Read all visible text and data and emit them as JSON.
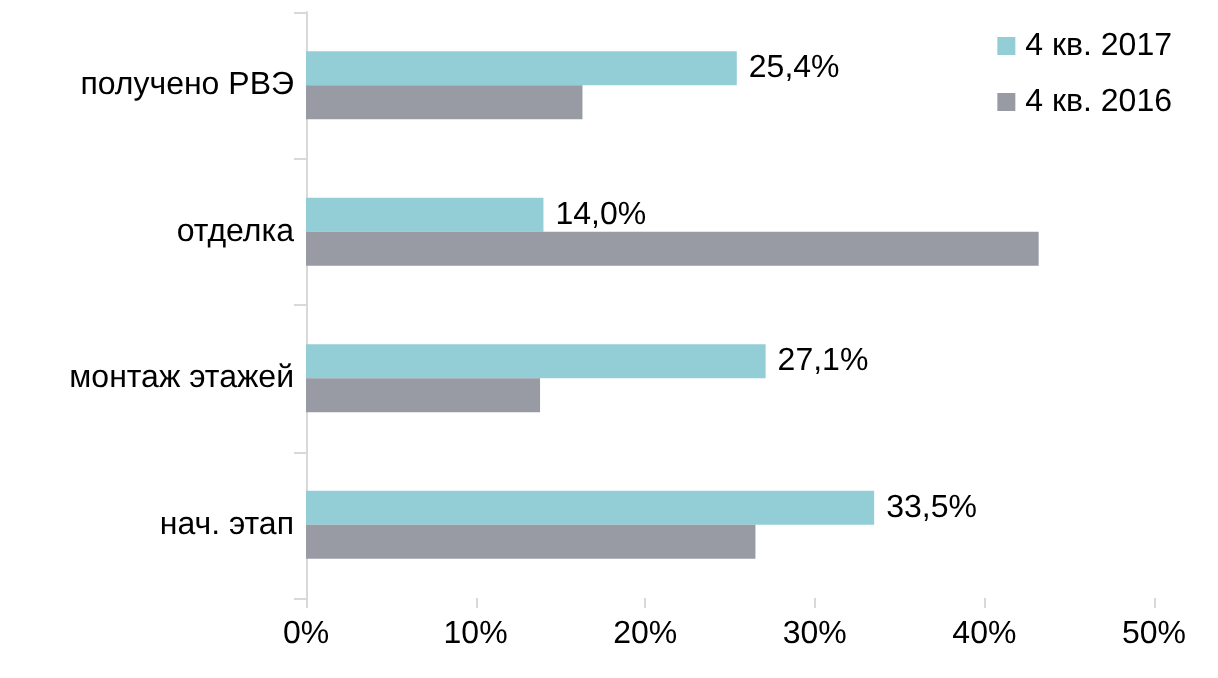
{
  "chart_data": {
    "type": "bar",
    "orientation": "horizontal",
    "categories": [
      "получено РВЭ",
      "отделка",
      "монтаж этажей",
      "нач. этап"
    ],
    "series": [
      {
        "name": "4 кв. 2017",
        "color": "#93cdd5",
        "values": [
          25.4,
          14.0,
          27.1,
          33.5
        ],
        "value_labels": [
          "25,4%",
          "14,0%",
          "27,1%",
          "33,5%"
        ]
      },
      {
        "name": "4 кв. 2016",
        "color": "#989ba3",
        "values": [
          16.3,
          43.2,
          13.8,
          26.5
        ]
      }
    ],
    "xlim": [
      0,
      50
    ],
    "xticks": [
      {
        "value": 0,
        "label": "0%"
      },
      {
        "value": 10,
        "label": "10%"
      },
      {
        "value": 20,
        "label": "20%"
      },
      {
        "value": 30,
        "label": "30%"
      },
      {
        "value": 40,
        "label": "40%"
      },
      {
        "value": 50,
        "label": "50%"
      }
    ],
    "grid": false,
    "legend": "top right"
  }
}
